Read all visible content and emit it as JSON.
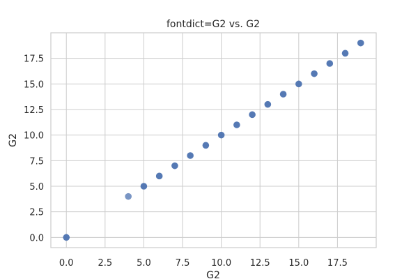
{
  "chart_data": {
    "type": "scatter",
    "title": "fontdict=G2 vs. G2",
    "xlabel": "G2",
    "ylabel": "G2",
    "xlim": [
      -1,
      20
    ],
    "ylim": [
      -1,
      20
    ],
    "x_ticks": [
      "0.0",
      "2.5",
      "5.0",
      "7.5",
      "10.0",
      "12.5",
      "15.0",
      "17.5"
    ],
    "y_ticks": [
      "0.0",
      "2.5",
      "5.0",
      "7.5",
      "10.0",
      "12.5",
      "15.0",
      "17.5"
    ],
    "grid": true,
    "legend": "none",
    "marker_color": "#4c72b0",
    "points": [
      {
        "x": 0,
        "y": 0,
        "opacity": 0.95
      },
      {
        "x": 4,
        "y": 4,
        "opacity": 0.75
      },
      {
        "x": 5,
        "y": 5,
        "opacity": 0.95
      },
      {
        "x": 6,
        "y": 6,
        "opacity": 0.95
      },
      {
        "x": 7,
        "y": 7,
        "opacity": 0.95
      },
      {
        "x": 8,
        "y": 8,
        "opacity": 0.95
      },
      {
        "x": 9,
        "y": 9,
        "opacity": 0.95
      },
      {
        "x": 10,
        "y": 10,
        "opacity": 0.95
      },
      {
        "x": 11,
        "y": 11,
        "opacity": 0.95
      },
      {
        "x": 12,
        "y": 12,
        "opacity": 0.95
      },
      {
        "x": 13,
        "y": 13,
        "opacity": 0.95
      },
      {
        "x": 14,
        "y": 14,
        "opacity": 0.95
      },
      {
        "x": 15,
        "y": 15,
        "opacity": 0.95
      },
      {
        "x": 16,
        "y": 16,
        "opacity": 0.95
      },
      {
        "x": 17,
        "y": 17,
        "opacity": 0.95
      },
      {
        "x": 18,
        "y": 18,
        "opacity": 0.95
      },
      {
        "x": 19,
        "y": 19,
        "opacity": 0.95
      }
    ]
  }
}
